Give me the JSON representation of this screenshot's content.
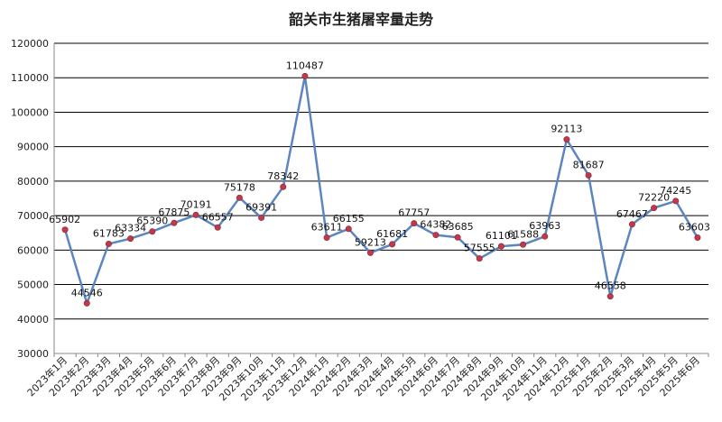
{
  "chart_data": {
    "type": "line",
    "title": "韶关市生猪屠宰量走势",
    "xlabel": "",
    "ylabel": "",
    "ylim": [
      30000,
      120000
    ],
    "yticks": [
      30000,
      40000,
      50000,
      60000,
      70000,
      80000,
      90000,
      100000,
      110000,
      120000
    ],
    "grid": "horizontal",
    "categories": [
      "2023年1月",
      "2023年2月",
      "2023年3月",
      "2023年4月",
      "2023年5月",
      "2023年6月",
      "2023年7月",
      "2023年8月",
      "2023年9月",
      "2023年10月",
      "2023年11月",
      "2023年12月",
      "2024年1月",
      "2024年2月",
      "2024年3月",
      "2024年4月",
      "2024年5月",
      "2024年6月",
      "2024年7月",
      "2024年8月",
      "2024年9月",
      "2024年10月",
      "2024年11月",
      "2024年12月",
      "2025年1月",
      "2025年2月",
      "2025年3月",
      "2025年4月",
      "2025年5月",
      "2025年6月"
    ],
    "values": [
      65902,
      44546,
      61783,
      63334,
      65390,
      67875,
      70191,
      66557,
      75178,
      69391,
      78342,
      110487,
      63611,
      66155,
      59213,
      61681,
      67757,
      64382,
      63685,
      57555,
      61101,
      61588,
      63963,
      92113,
      81687,
      46558,
      67467,
      72220,
      74245,
      63603
    ],
    "colors": {
      "line": "#5b86c0",
      "marker": "#c0394a",
      "grid": "#000000",
      "axis": "#888888"
    }
  }
}
